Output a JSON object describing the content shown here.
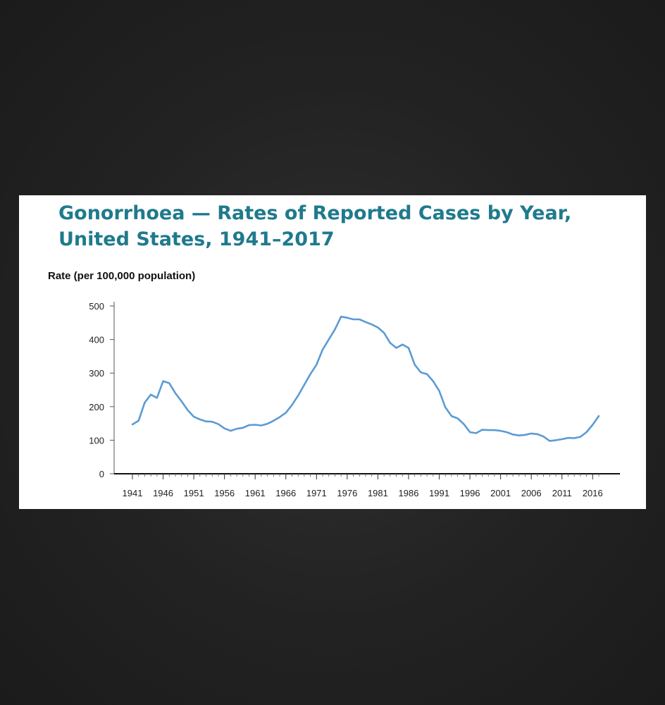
{
  "slide": {
    "title_line1": "Gonorrhoea — Rates of Reported Cases by Year,",
    "title_line2": "United States, 1941–2017"
  },
  "chart_data": {
    "type": "line",
    "title": "Gonorrhoea — Rates of Reported Cases by Year, United States, 1941–2017",
    "ylabel": "Rate (per 100,000 population)",
    "xlabel": "",
    "xlim": [
      1941,
      2017
    ],
    "ylim": [
      0,
      500
    ],
    "yticks": [
      0,
      100,
      200,
      300,
      400,
      500
    ],
    "xticks": [
      1941,
      1946,
      1951,
      1956,
      1961,
      1966,
      1971,
      1976,
      1981,
      1986,
      1991,
      1996,
      2001,
      2006,
      2011,
      2016
    ],
    "grid": false,
    "line_color": "#5b9bd5",
    "series": [
      {
        "x": [
          1941,
          1942,
          1943,
          1944,
          1945,
          1946,
          1947,
          1948,
          1949,
          1950,
          1951,
          1952,
          1953,
          1954,
          1955,
          1956,
          1957,
          1958,
          1959,
          1960,
          1961,
          1962,
          1963,
          1964,
          1965,
          1966,
          1967,
          1968,
          1969,
          1970,
          1971,
          1972,
          1973,
          1974,
          1975,
          1976,
          1977,
          1978,
          1979,
          1980,
          1981,
          1982,
          1983,
          1984,
          1985,
          1986,
          1987,
          1988,
          1989,
          1990,
          1991,
          1992,
          1993,
          1994,
          1995,
          1996,
          1997,
          1998,
          1999,
          2000,
          2001,
          2002,
          2003,
          2004,
          2005,
          2006,
          2007,
          2008,
          2009,
          2010,
          2011,
          2012,
          2013,
          2014,
          2015,
          2016,
          2017
        ],
        "values": [
          147,
          158,
          212,
          236,
          226,
          276,
          270,
          240,
          216,
          190,
          170,
          162,
          156,
          155,
          148,
          135,
          128,
          134,
          137,
          145,
          146,
          144,
          149,
          158,
          169,
          182,
          205,
          233,
          265,
          297,
          325,
          370,
          400,
          430,
          468,
          465,
          460,
          460,
          452,
          445,
          436,
          420,
          390,
          375,
          385,
          375,
          325,
          302,
          297,
          276,
          247,
          198,
          172,
          165,
          148,
          124,
          121,
          131,
          130,
          130,
          128,
          124,
          117,
          114,
          116,
          120,
          118,
          111,
          98,
          100,
          103,
          107,
          106,
          110,
          124,
          146,
          172
        ]
      }
    ]
  }
}
